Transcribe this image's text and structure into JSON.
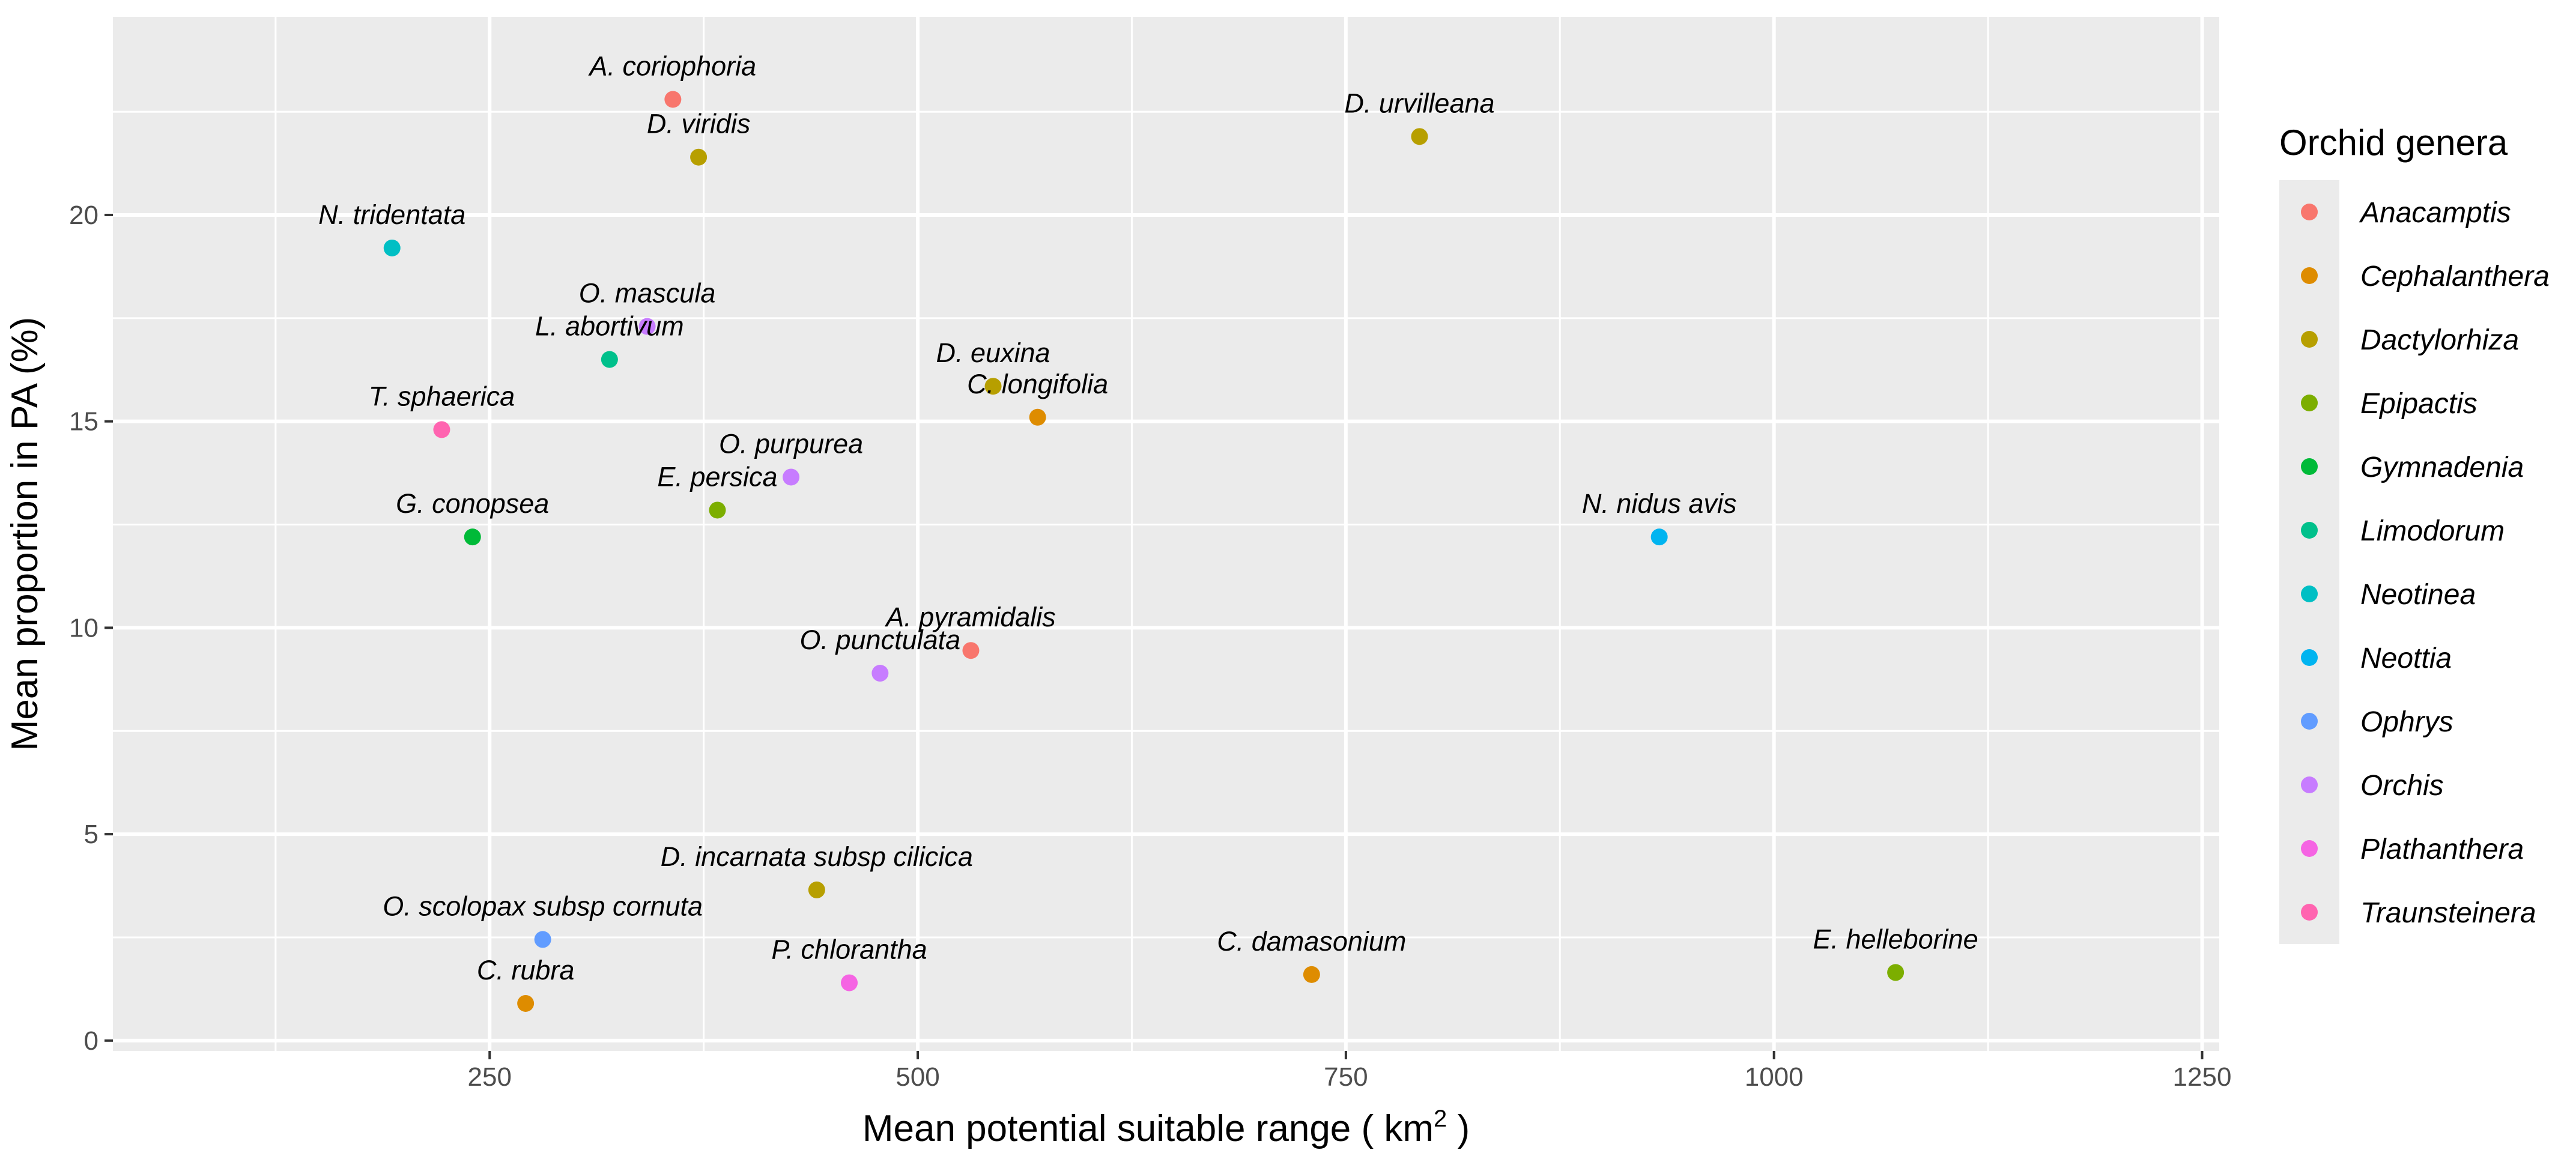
{
  "chart_data": {
    "type": "scatter",
    "title": "",
    "xlabel": "Mean potential suitable range ( km",
    "xlabel_sup": "2",
    "xlabel_end": " )",
    "ylabel": "Mean proportion in PA (%)",
    "xlim": [
      30,
      1260
    ],
    "ylim": [
      -0.25,
      24.8
    ],
    "x_ticks": [
      250,
      500,
      750,
      1000,
      1250
    ],
    "x_tick_labels": [
      "250",
      "500",
      "750",
      "1000",
      "1250"
    ],
    "y_ticks": [
      0,
      5,
      10,
      15,
      20
    ],
    "y_tick_labels": [
      "0",
      "5",
      "10",
      "15",
      "20"
    ],
    "grid": true,
    "legend": {
      "title": "Orchid genera",
      "position": "right",
      "entries": [
        {
          "name": "Anacamptis",
          "color": "#F8766D"
        },
        {
          "name": "Cephalanthera",
          "color": "#DE8C00"
        },
        {
          "name": "Dactylorhiza",
          "color": "#B79F00"
        },
        {
          "name": "Epipactis",
          "color": "#7CAE00"
        },
        {
          "name": "Gymnadenia",
          "color": "#00BA38"
        },
        {
          "name": "Limodorum",
          "color": "#00C08B"
        },
        {
          "name": "Neotinea",
          "color": "#00BFC4"
        },
        {
          "name": "Neottia",
          "color": "#00B4F0"
        },
        {
          "name": "Ophrys",
          "color": "#619CFF"
        },
        {
          "name": "Orchis",
          "color": "#C77CFF"
        },
        {
          "name": "Plathanthera",
          "color": "#F564E3"
        },
        {
          "name": "Traunsteinera",
          "color": "#FF64B0"
        }
      ]
    },
    "points": [
      {
        "label": "A. coriophoria",
        "genus": "Anacamptis",
        "x": 357,
        "y": 22.8
      },
      {
        "label": "D. viridis",
        "genus": "Dactylorhiza",
        "x": 372,
        "y": 21.4
      },
      {
        "label": "D. urvilleana",
        "genus": "Dactylorhiza",
        "x": 793,
        "y": 21.9
      },
      {
        "label": "N. tridentata",
        "genus": "Neotinea",
        "x": 193,
        "y": 19.2
      },
      {
        "label": "O. mascula",
        "genus": "Orchis",
        "x": 342,
        "y": 17.3
      },
      {
        "label": "L. abortivum",
        "genus": "Limodorum",
        "x": 320,
        "y": 16.5
      },
      {
        "label": "D. euxina",
        "genus": "Dactylorhiza",
        "x": 544,
        "y": 15.85
      },
      {
        "label": "C. longifolia",
        "genus": "Cephalanthera",
        "x": 570,
        "y": 15.1
      },
      {
        "label": "T. sphaerica",
        "genus": "Traunsteinera",
        "x": 222,
        "y": 14.8
      },
      {
        "label": "O. purpurea",
        "genus": "Orchis",
        "x": 426,
        "y": 13.65
      },
      {
        "label": "E. persica",
        "genus": "Epipactis",
        "x": 383,
        "y": 12.85
      },
      {
        "label": "G. conopsea",
        "genus": "Gymnadenia",
        "x": 240,
        "y": 12.2
      },
      {
        "label": "N. nidus avis",
        "genus": "Neottia",
        "x": 933,
        "y": 12.2
      },
      {
        "label": "A. pyramidalis",
        "genus": "Anacamptis",
        "x": 531,
        "y": 9.45
      },
      {
        "label": "O. punctulata",
        "genus": "Orchis",
        "x": 478,
        "y": 8.9
      },
      {
        "label": "D. incarnata subsp cilicica",
        "genus": "Dactylorhiza",
        "x": 441,
        "y": 3.65
      },
      {
        "label": "O. scolopax subsp cornuta",
        "genus": "Ophrys",
        "x": 281,
        "y": 2.45
      },
      {
        "label": "C. rubra",
        "genus": "Cephalanthera",
        "x": 271,
        "y": 0.9
      },
      {
        "label": "P. chlorantha",
        "genus": "Plathanthera",
        "x": 460,
        "y": 1.4
      },
      {
        "label": "C. damasonium",
        "genus": "Cephalanthera",
        "x": 730,
        "y": 1.6
      },
      {
        "label": "E. helleborine",
        "genus": "Epipactis",
        "x": 1071,
        "y": 1.65
      }
    ]
  }
}
